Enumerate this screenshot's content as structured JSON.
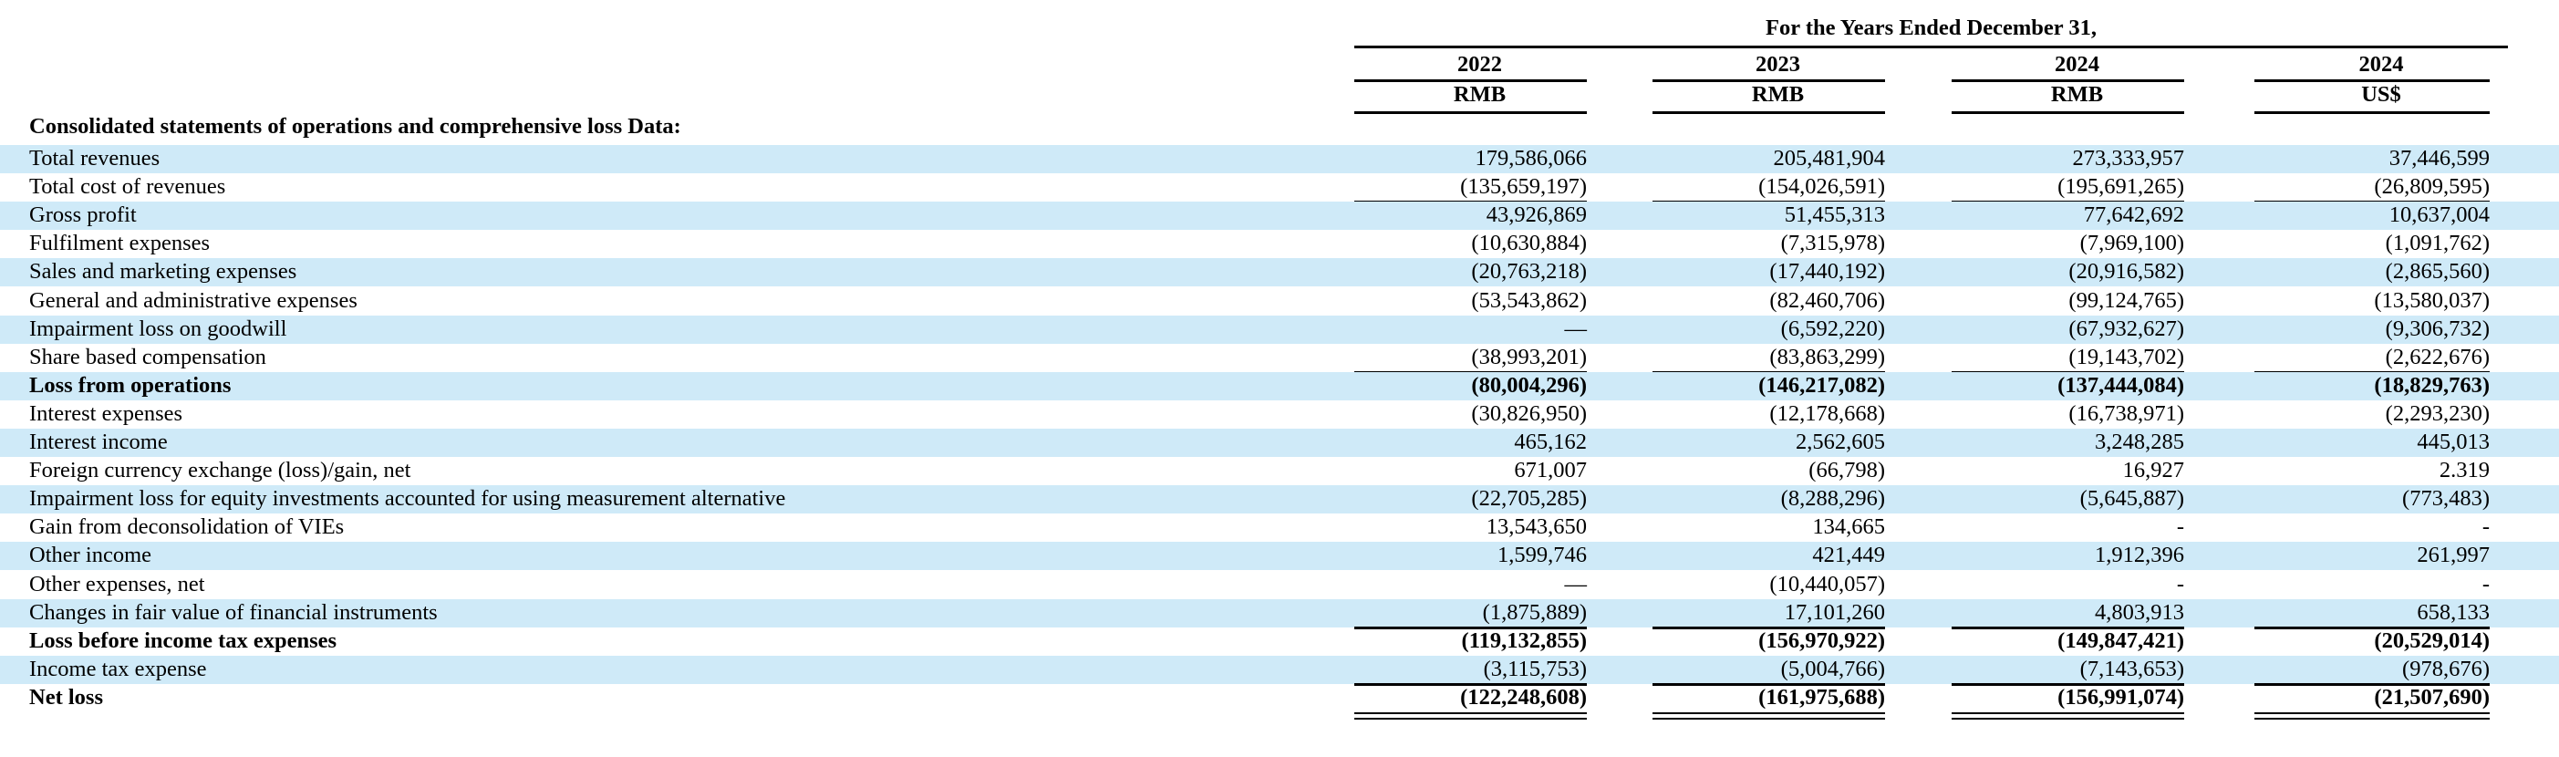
{
  "header": {
    "period": "For the Years Ended December 31,",
    "columns": [
      {
        "year": "2022",
        "currency": "RMB"
      },
      {
        "year": "2023",
        "currency": "RMB"
      },
      {
        "year": "2024",
        "currency": "RMB"
      },
      {
        "year": "2024",
        "currency": "US$"
      }
    ]
  },
  "section_title": "Consolidated statements of operations and comprehensive loss Data:",
  "rows": [
    {
      "label": "Total revenues",
      "values": [
        "179,586,066",
        "205,481,904",
        "273,333,957",
        "37,446,599"
      ],
      "shaded": true,
      "bold": false
    },
    {
      "label": "Total cost of revenues",
      "values": [
        "(135,659,197)",
        "(154,026,591)",
        "(195,691,265)",
        "(26,809,595)"
      ],
      "shaded": false,
      "bold": false
    },
    {
      "label": "Gross profit",
      "values": [
        "43,926,869",
        "51,455,313",
        "77,642,692",
        "10,637,004"
      ],
      "shaded": true,
      "bold": false
    },
    {
      "label": "Fulfilment expenses",
      "values": [
        "(10,630,884)",
        "(7,315,978)",
        "(7,969,100)",
        "(1,091,762)"
      ],
      "shaded": false,
      "bold": false
    },
    {
      "label": "Sales and marketing expenses",
      "values": [
        "(20,763,218)",
        "(17,440,192)",
        "(20,916,582)",
        "(2,865,560)"
      ],
      "shaded": true,
      "bold": false
    },
    {
      "label": "General and administrative expenses",
      "values": [
        "(53,543,862)",
        "(82,460,706)",
        "(99,124,765)",
        "(13,580,037)"
      ],
      "shaded": false,
      "bold": false
    },
    {
      "label": "Impairment loss on goodwill",
      "values": [
        "—",
        "(6,592,220)",
        "(67,932,627)",
        "(9,306,732)"
      ],
      "shaded": true,
      "bold": false
    },
    {
      "label": "Share based compensation",
      "values": [
        "(38,993,201)",
        "(83,863,299)",
        "(19,143,702)",
        "(2,622,676)"
      ],
      "shaded": false,
      "bold": false
    },
    {
      "label": "Loss from operations",
      "values": [
        "(80,004,296)",
        "(146,217,082)",
        "(137,444,084)",
        "(18,829,763)"
      ],
      "shaded": true,
      "bold": true
    },
    {
      "label": "Interest expenses",
      "values": [
        "(30,826,950)",
        "(12,178,668)",
        "(16,738,971)",
        "(2,293,230)"
      ],
      "shaded": false,
      "bold": false
    },
    {
      "label": "Interest income",
      "values": [
        "465,162",
        "2,562,605",
        "3,248,285",
        "445,013"
      ],
      "shaded": true,
      "bold": false
    },
    {
      "label": "Foreign currency exchange (loss)/gain, net",
      "values": [
        "671,007",
        "(66,798)",
        "16,927",
        "2.319"
      ],
      "shaded": false,
      "bold": false
    },
    {
      "label": "Impairment loss for equity investments accounted for using measurement alternative",
      "values": [
        "(22,705,285)",
        "(8,288,296)",
        "(5,645,887)",
        "(773,483)"
      ],
      "shaded": true,
      "bold": false
    },
    {
      "label": "Gain from deconsolidation of VIEs",
      "values": [
        "13,543,650",
        "134,665",
        "-",
        "-"
      ],
      "shaded": false,
      "bold": false
    },
    {
      "label": "Other income",
      "values": [
        "1,599,746",
        "421,449",
        "1,912,396",
        "261,997"
      ],
      "shaded": true,
      "bold": false
    },
    {
      "label": "Other expenses, net",
      "values": [
        "—",
        "(10,440,057)",
        "-",
        "-"
      ],
      "shaded": false,
      "bold": false
    },
    {
      "label": "Changes in fair value of financial instruments",
      "values": [
        "(1,875,889)",
        "17,101,260",
        "4,803,913",
        "658,133"
      ],
      "shaded": true,
      "bold": false
    },
    {
      "label": "Loss before income tax expenses",
      "values": [
        "(119,132,855)",
        "(156,970,922)",
        "(149,847,421)",
        "(20,529,014)"
      ],
      "shaded": false,
      "bold": true
    },
    {
      "label": "Income tax expense",
      "values": [
        "(3,115,753)",
        "(5,004,766)",
        "(7,143,653)",
        "(978,676)"
      ],
      "shaded": true,
      "bold": false
    },
    {
      "label": "Net loss",
      "values": [
        "(122,248,608)",
        "(161,975,688)",
        "(156,991,074)",
        "(21,507,690)"
      ],
      "shaded": false,
      "bold": true
    }
  ],
  "colors": {
    "row_shade": "#cfeaf8"
  }
}
